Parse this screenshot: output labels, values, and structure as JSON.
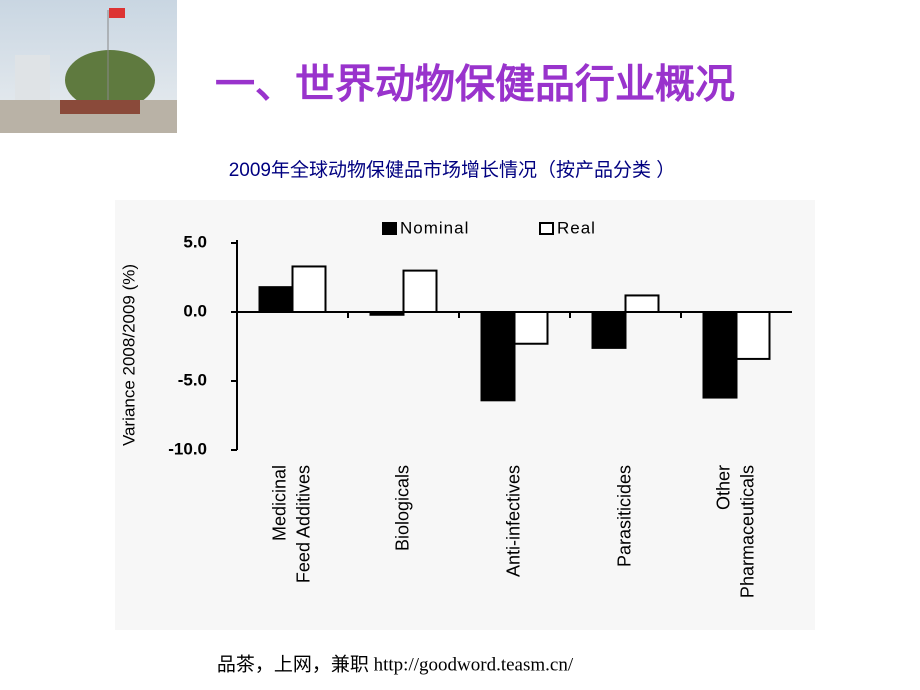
{
  "header": {
    "title": "一、世界动物保健品行业概况"
  },
  "chart_data": {
    "type": "bar",
    "title": "2009年全球动物保健品市场增长情况（按产品分类 ）",
    "y_label": "Variance 2008/2009 (%)",
    "categories": [
      "Medicinal Feed Additives",
      "Biologicals",
      "Anti-infectives",
      "Parasiticides",
      "Other Pharmaceuticals"
    ],
    "series": [
      {
        "name": "Nominal",
        "color": "#000000",
        "values": [
          1.8,
          -0.2,
          -6.4,
          -2.6,
          -6.2
        ]
      },
      {
        "name": "Real",
        "color": "#ffffff",
        "values": [
          3.3,
          3.0,
          -2.3,
          1.2,
          -3.4
        ]
      }
    ],
    "ylim": [
      -10,
      5
    ],
    "yticks": [
      {
        "value": 5,
        "label": "5.0"
      },
      {
        "value": 0,
        "label": "0.0"
      },
      {
        "value": -5,
        "label": "-5.0"
      },
      {
        "value": -10,
        "label": "-10.0"
      }
    ],
    "legend": "top"
  },
  "footer": {
    "text": "品茶，上网，兼职 http://goodword.teasm.cn/"
  }
}
